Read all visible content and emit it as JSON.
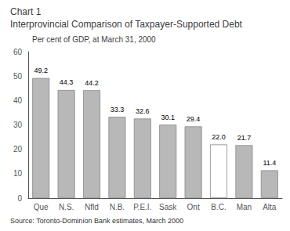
{
  "chart_data": {
    "type": "bar",
    "chart_label": "Chart 1",
    "title": "Interprovincial Comparison of Taxpayer-Supported Debt",
    "subtitle": "Per cent of GDP, at March 31, 2000",
    "source": "Source: Toronto-Dominion Bank estimates, March 2000",
    "categories": [
      "Que",
      "N.S.",
      "Nfld",
      "N.B.",
      "P.E.I.",
      "Sask",
      "Ont",
      "B.C.",
      "Man",
      "Alta"
    ],
    "values": [
      49.2,
      44.3,
      44.2,
      33.3,
      32.6,
      30.1,
      29.4,
      22.0,
      21.7,
      11.4
    ],
    "value_labels": [
      "49.2",
      "44.3",
      "44.2",
      "33.3",
      "32.6",
      "30.1",
      "29.4",
      "22.0",
      "21.7",
      "11.4"
    ],
    "data_labels": true,
    "colors": [
      "#b8b8b8",
      "#b8b8b8",
      "#b8b8b8",
      "#b8b8b8",
      "#b8b8b8",
      "#b8b8b8",
      "#b8b8b8",
      "#ffffff",
      "#b8b8b8",
      "#b8b8b8"
    ],
    "ylim": [
      0,
      60
    ],
    "yticks": [
      0,
      10,
      20,
      30,
      40,
      50,
      60
    ],
    "grid": false
  }
}
